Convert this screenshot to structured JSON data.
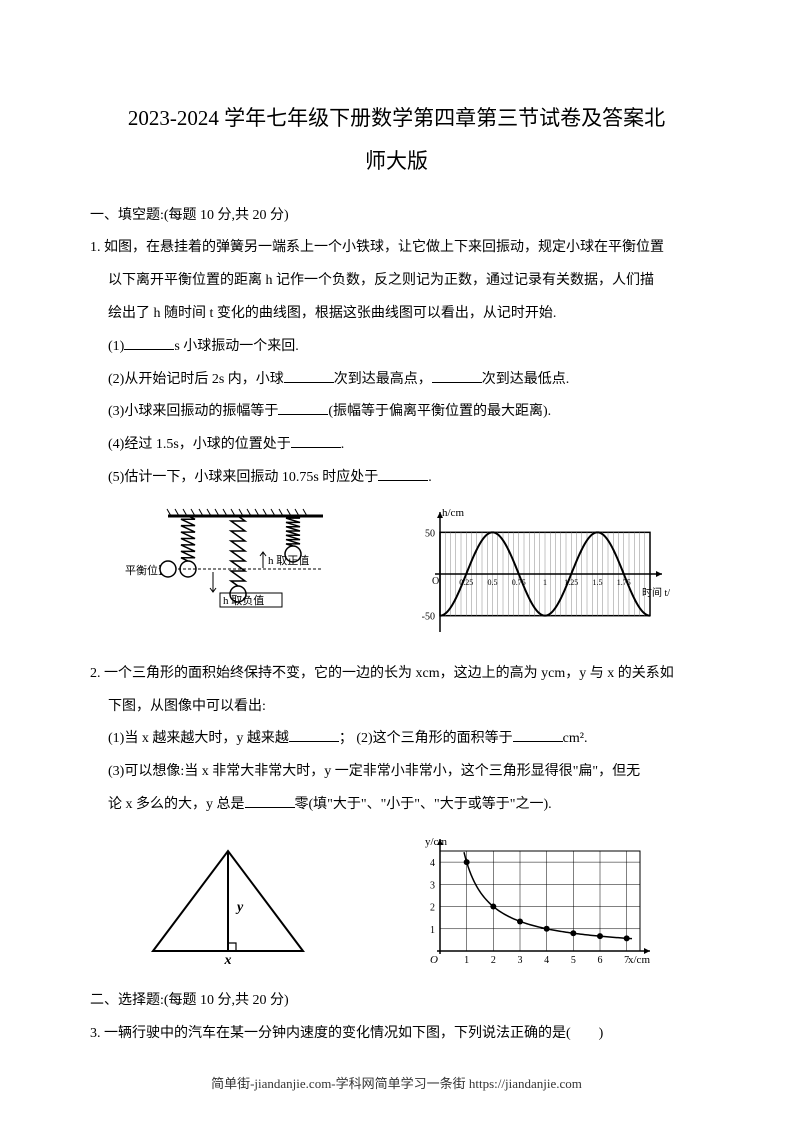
{
  "title": {
    "line1": "2023-2024 学年七年级下册数学第四章第三节试卷及答案北",
    "line2": "师大版"
  },
  "section1": {
    "header": "一、填空题:(每题 10 分,共 20 分)",
    "q1": {
      "stem1": "1. 如图，在悬挂着的弹簧另一端系上一个小铁球，让它做上下来回振动，规定小球在平衡位置",
      "stem2": "以下离开平衡位置的距离 h 记作一个负数，反之则记为正数，通过记录有关数据，人们描",
      "stem3": "绘出了 h 随时间 t 变化的曲线图，根据这张曲线图可以看出，从记时开始.",
      "sub1_prefix": "(1)",
      "sub1_suffix": "s 小球振动一个来回.",
      "sub2_prefix": "(2)从开始记时后 2s 内，小球",
      "sub2_mid": "次到达最高点，",
      "sub2_suffix": "次到达最低点.",
      "sub3_prefix": "(3)小球来回振动的振幅等于",
      "sub3_suffix": "(振幅等于偏离平衡位置的最大距离).",
      "sub4_prefix": "(4)经过 1.5s，小球的位置处于",
      "sub4_suffix": ".",
      "sub5_prefix": "(5)估计一下，小球来回振动 10.75s 时应处于",
      "sub5_suffix": "."
    },
    "q2": {
      "stem1": "2. 一个三角形的面积始终保持不变，它的一边的长为 xcm，这边上的高为 ycm，y 与 x 的关系如",
      "stem2": "下图，从图像中可以看出:",
      "sub1_prefix": "(1)当 x 越来越大时，y 越来越",
      "sub1_mid": "；  (2)这个三角形的面积等于",
      "sub1_suffix": "cm².",
      "sub3_prefix": "(3)可以想像:当 x 非常大非常大时，y 一定非常小非常小，这个三角形显得很\"扁\"，但无",
      "sub3_line2_prefix": "论 x 多么的大，y 总是",
      "sub3_line2_suffix": "零(填\"大于\"、\"小于\"、\"大于或等于\"之一)."
    }
  },
  "section2": {
    "header": "二、选择题:(每题 10 分,共 20 分)",
    "q3": "3. 一辆行驶中的汽车在某一分钟内速度的变化情况如下图，下列说法正确的是(　　)"
  },
  "footer": "简单街-jiandanjie.com-学科网简单学习一条街 https://jiandanjie.com",
  "figures": {
    "spring": {
      "label_balance": "平衡位置",
      "label_pos": "h 取正值",
      "label_neg": "h 取负值",
      "stroke": "#000000"
    },
    "wave_chart": {
      "type": "line",
      "ylabel": "h/cm",
      "xlabel": "时间 t/s",
      "ylim": [
        -60,
        60
      ],
      "xlim": [
        0,
        2
      ],
      "y_ticks": [
        -50,
        0,
        50
      ],
      "x_ticks": [
        0.25,
        0.5,
        0.75,
        1,
        1.25,
        1.5,
        1.75,
        2
      ],
      "x_tick_labels": [
        "0.25",
        "0.5",
        "0.75",
        "1",
        "1.25",
        "1.5",
        "1.75",
        ""
      ],
      "amplitude": 50,
      "period": 1,
      "phase_shift": 0.25,
      "background": "#ffffff",
      "hatch_color": "#888888",
      "axis_color": "#000000",
      "line_color": "#000000",
      "line_width": 2
    },
    "triangle": {
      "label_x": "x",
      "label_y": "y",
      "stroke": "#000000",
      "stroke_width": 2
    },
    "hyperbola_chart": {
      "type": "scatter-line",
      "ylabel": "y/cm",
      "xlabel": "x/cm",
      "xlim": [
        0,
        7.5
      ],
      "ylim": [
        0,
        4.5
      ],
      "x_ticks": [
        1,
        2,
        3,
        4,
        5,
        6,
        7
      ],
      "y_ticks": [
        1,
        2,
        3,
        4
      ],
      "points_x": [
        1,
        2,
        3,
        4,
        5,
        6,
        7
      ],
      "points_y": [
        4,
        2,
        1.33,
        1,
        0.8,
        0.67,
        0.57
      ],
      "marker": "circle",
      "marker_fill": "#000000",
      "marker_r": 3,
      "line_color": "#000000",
      "line_width": 1.5,
      "grid_color": "#000000",
      "grid_width": 0.5,
      "background": "#ffffff"
    }
  }
}
